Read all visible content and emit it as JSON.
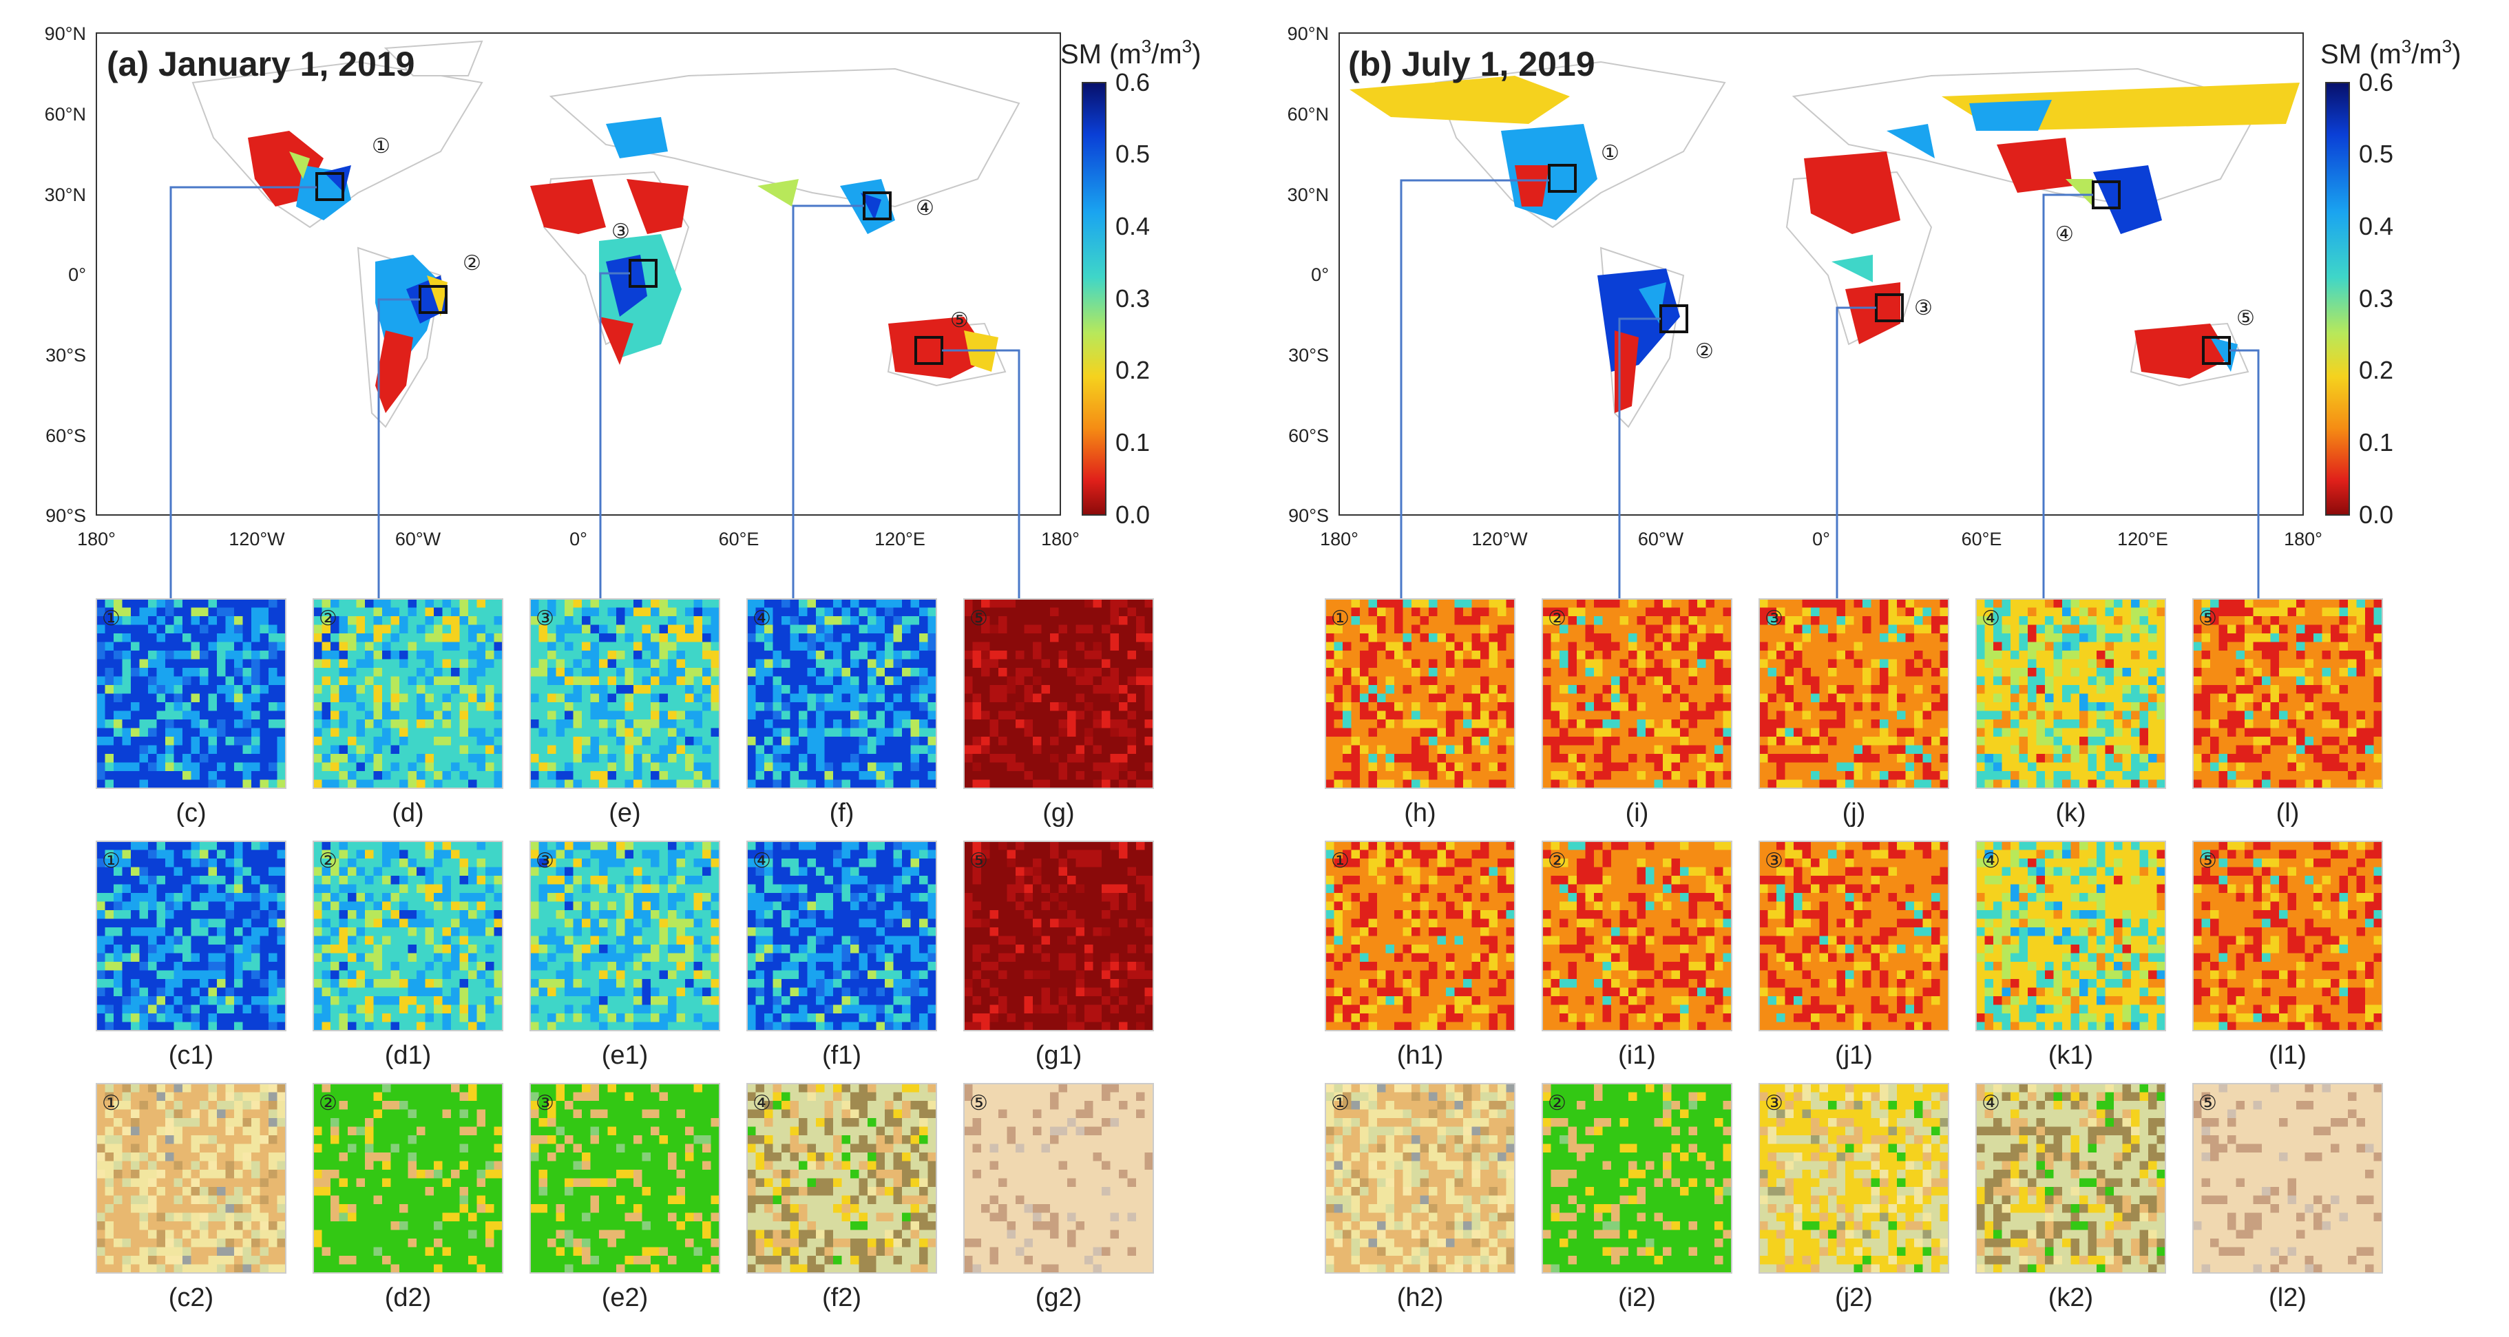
{
  "colorbar": {
    "label_html": "SM (m³/m³)",
    "label_main": "SM (m",
    "label_sup1": "3",
    "label_mid": "/m",
    "label_sup2": "3",
    "label_end": ")",
    "ticks": [
      "0.6",
      "0.5",
      "0.4",
      "0.3",
      "0.2",
      "0.1",
      "0.0"
    ],
    "colors": [
      "#08106a",
      "#0a3fd6",
      "#1aa4f0",
      "#3fd6c8",
      "#b8e85a",
      "#f5d21e",
      "#f58c14",
      "#e0201a",
      "#8a0a0a"
    ]
  },
  "map_a": {
    "title": "(a) January 1, 2019",
    "lat_ticks": [
      "90°N",
      "60°N",
      "30°N",
      "0°",
      "30°S",
      "60°S",
      "90°S"
    ],
    "lon_ticks": [
      "180°",
      "120°W",
      "60°W",
      "0°",
      "60°E",
      "120°E",
      "180°"
    ],
    "regions": [
      "①",
      "②",
      "③",
      "④",
      "⑤"
    ]
  },
  "map_b": {
    "title": "(b) July 1, 2019",
    "lat_ticks": [
      "90°N",
      "60°N",
      "30°N",
      "0°",
      "30°S",
      "60°S",
      "90°S"
    ],
    "lon_ticks": [
      "180°",
      "120°W",
      "60°W",
      "0°",
      "60°E",
      "120°E",
      "180°"
    ],
    "regions": [
      "①",
      "②",
      "③",
      "④",
      "⑤"
    ]
  },
  "panels_a": {
    "row1": [
      "(c)",
      "(d)",
      "(e)",
      "(f)",
      "(g)"
    ],
    "row2": [
      "(c1)",
      "(d1)",
      "(e1)",
      "(f1)",
      "(g1)"
    ],
    "row3": [
      "(c2)",
      "(d2)",
      "(e2)",
      "(f2)",
      "(g2)"
    ]
  },
  "panels_b": {
    "row1": [
      "(h)",
      "(i)",
      "(j)",
      "(k)",
      "(l)"
    ],
    "row2": [
      "(h1)",
      "(i1)",
      "(j1)",
      "(k1)",
      "(l1)"
    ],
    "row3": [
      "(h2)",
      "(i2)",
      "(j2)",
      "(k2)",
      "(l2)"
    ]
  },
  "panel_numbers": [
    "①",
    "②",
    "③",
    "④",
    "⑤"
  ]
}
